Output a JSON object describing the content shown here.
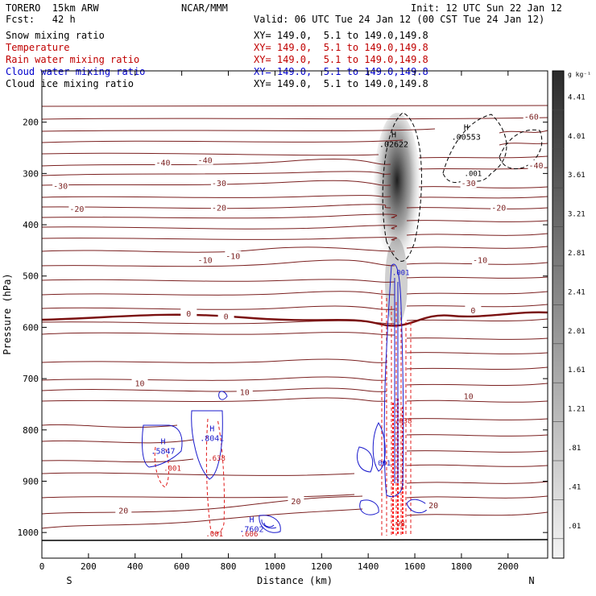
{
  "header": {
    "model": "TORERO  15km ARW",
    "center": "NCAR/MMM",
    "init": "Init: 12 UTC Sun 22 Jan 12",
    "fcst": "Fcst:   42 h",
    "valid": "Valid: 06 UTC Tue 24 Jan 12 (00 CST Tue 24 Jan 12)"
  },
  "fields": [
    {
      "name": "Snow mixing ratio",
      "coords": "XY= 149.0,  5.1 to 149.0,149.8",
      "color": "#000000"
    },
    {
      "name": "Temperature",
      "coords": "XY= 149.0,  5.1 to 149.0,149.8",
      "color": "#c00000"
    },
    {
      "name": "Rain water mixing ratio",
      "coords": "XY= 149.0,  5.1 to 149.0,149.8",
      "color": "#c00000"
    },
    {
      "name": "Cloud water mixing ratio",
      "coords": "XY= 149.0,  5.1 to 149.0,149.8",
      "color": "#0000cc"
    },
    {
      "name": "Cloud ice mixing ratio",
      "coords": "XY= 149.0,  5.1 to 149.0,149.8",
      "color": "#000000"
    }
  ],
  "chart_data": {
    "type": "contour-cross-section",
    "xlabel": "Distance (km)",
    "ylabel": "Pressure (hPa)",
    "xlim": [
      0,
      2170
    ],
    "ylim": [
      1050,
      100
    ],
    "xticks": [
      0,
      200,
      400,
      600,
      800,
      1000,
      1200,
      1400,
      1600,
      1800,
      2000
    ],
    "yticks": [
      200,
      300,
      400,
      500,
      600,
      700,
      800,
      900,
      1000
    ],
    "x_end_labels": {
      "left": "S",
      "right": "N"
    },
    "colorbar": {
      "unit": "g kg⁻¹",
      "levels": [
        "4.41",
        "4.01",
        "3.61",
        "3.21",
        "2.81",
        "2.41",
        "2.01",
        "1.61",
        "1.21",
        ".81",
        ".41",
        ".01"
      ]
    },
    "temperature_labels": [
      {
        "text": "-60",
        "x": 2100,
        "p": 190
      },
      {
        "text": "-40",
        "x": 520,
        "p": 280
      },
      {
        "text": "-40",
        "x": 700,
        "p": 275
      },
      {
        "text": "-40",
        "x": 2120,
        "p": 285
      },
      {
        "text": "-30",
        "x": 80,
        "p": 325
      },
      {
        "text": "-30",
        "x": 760,
        "p": 320
      },
      {
        "text": "-30",
        "x": 1830,
        "p": 320
      },
      {
        "text": "-20",
        "x": 150,
        "p": 370
      },
      {
        "text": "-20",
        "x": 760,
        "p": 368
      },
      {
        "text": "-20",
        "x": 1960,
        "p": 368
      },
      {
        "text": "-10",
        "x": 700,
        "p": 470
      },
      {
        "text": "-10",
        "x": 820,
        "p": 462
      },
      {
        "text": "-10",
        "x": 1880,
        "p": 470
      },
      {
        "text": "0",
        "x": 630,
        "p": 574
      },
      {
        "text": "0",
        "x": 790,
        "p": 580
      },
      {
        "text": "0",
        "x": 1850,
        "p": 568
      },
      {
        "text": "10",
        "x": 420,
        "p": 710
      },
      {
        "text": "10",
        "x": 870,
        "p": 727
      },
      {
        "text": "10",
        "x": 1830,
        "p": 735
      },
      {
        "text": "20",
        "x": 350,
        "p": 958
      },
      {
        "text": "20",
        "x": 1090,
        "p": 940
      },
      {
        "text": "20",
        "x": 1680,
        "p": 948
      }
    ],
    "maxima": [
      {
        "label": "H",
        "value": ".02622",
        "x": 1510,
        "p": 242
      },
      {
        "label": "H",
        "value": ".00553",
        "x": 1820,
        "p": 228
      },
      {
        "label": "H",
        "value": ".5847",
        "x": 520,
        "p": 840
      },
      {
        "label": "H",
        "value": ".8041",
        "x": 730,
        "p": 815
      },
      {
        "label": "H",
        "value": ".7602",
        "x": 900,
        "p": 993
      }
    ],
    "minor_labels": [
      {
        "text": ".001",
        "x": 1540,
        "p": 493
      },
      {
        "text": ".001",
        "x": 1850,
        "p": 300
      },
      {
        "text": ".001",
        "x": 1460,
        "p": 865
      },
      {
        "text": ".001",
        "x": 560,
        "p": 875
      },
      {
        "text": ".001",
        "x": 740,
        "p": 1003
      },
      {
        "text": ".638",
        "x": 1550,
        "p": 782
      },
      {
        "text": ".98",
        "x": 1530,
        "p": 983
      },
      {
        "text": ".638",
        "x": 750,
        "p": 855
      },
      {
        "text": ".606",
        "x": 890,
        "p": 1003
      }
    ]
  }
}
